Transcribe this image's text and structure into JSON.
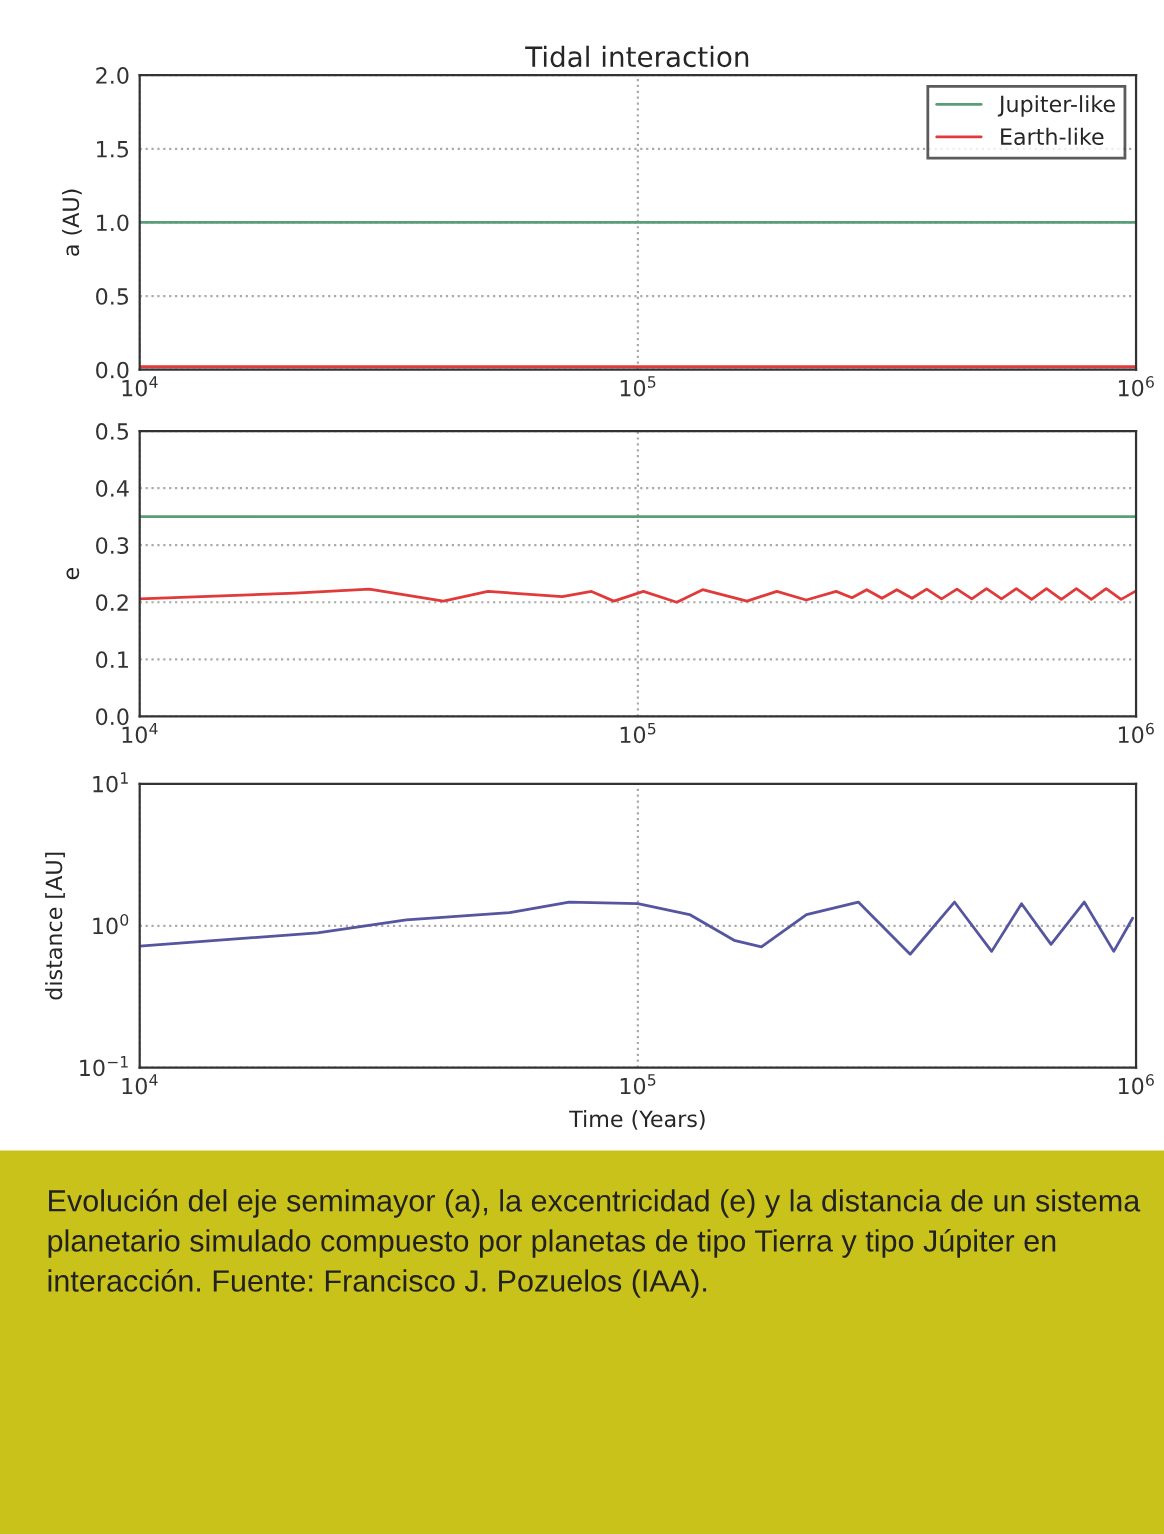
{
  "chart_data": [
    {
      "type": "line",
      "title": "Tidal interaction",
      "ylabel": "a (AU)",
      "xlim": [
        10000,
        1000000
      ],
      "xticks": [
        {
          "value": 10000,
          "label": "10$^{4}$"
        },
        {
          "value": 100000,
          "label": "10$^{5}$"
        },
        {
          "value": 1000000,
          "label": "10$^{6}$"
        }
      ],
      "ylim": [
        0,
        2
      ],
      "yticks": [
        {
          "value": 0,
          "label": "0.0"
        },
        {
          "value": 0.5,
          "label": "0.5"
        },
        {
          "value": 1,
          "label": "1.0"
        },
        {
          "value": 1.5,
          "label": "1.5"
        },
        {
          "value": 2,
          "label": "2.0"
        }
      ],
      "log": "x",
      "grid": true,
      "legend": "top right",
      "series": [
        {
          "name": "Jupiter-like",
          "color": "#5a9e78",
          "x": [
            10000,
            1000000
          ],
          "values": [
            1.0,
            1.0
          ]
        },
        {
          "name": "Earth-like",
          "color": "#e03a3a",
          "x": [
            10000,
            1000000
          ],
          "values": [
            0.02,
            0.02
          ]
        }
      ]
    },
    {
      "type": "line",
      "ylabel": "e",
      "xlim": [
        10000,
        1000000
      ],
      "xticks": [
        {
          "value": 10000,
          "label": "10$^{4}$"
        },
        {
          "value": 100000,
          "label": "10$^{5}$"
        },
        {
          "value": 1000000,
          "label": "10$^{6}$"
        }
      ],
      "ylim": [
        0,
        0.5
      ],
      "yticks": [
        {
          "value": 0,
          "label": "0.0"
        },
        {
          "value": 0.1,
          "label": "0.1"
        },
        {
          "value": 0.2,
          "label": "0.2"
        },
        {
          "value": 0.3,
          "label": "0.3"
        },
        {
          "value": 0.4,
          "label": "0.4"
        },
        {
          "value": 0.5,
          "label": "0.5"
        }
      ],
      "log": "x",
      "grid": true,
      "series": [
        {
          "color": "#5a9e78",
          "x": [
            10000,
            1000000
          ],
          "values": [
            0.35,
            0.35
          ]
        },
        {
          "color": "#e03a3a",
          "x": [
            10000,
            20500,
            28900,
            40700,
            50000,
            70500,
            80700,
            89500,
            102600,
            119700,
            134900,
            165600,
            190100,
            217800,
            250000,
            269000,
            288000,
            309000,
            331000,
            355000,
            380000,
            407000,
            437000,
            468000,
            501000,
            537000,
            575000,
            617000,
            661000,
            708000,
            759000,
            813000,
            871000,
            933000,
            1000000
          ],
          "values": [
            0.206,
            0.216,
            0.223,
            0.202,
            0.219,
            0.21,
            0.219,
            0.202,
            0.219,
            0.2,
            0.222,
            0.202,
            0.219,
            0.204,
            0.219,
            0.208,
            0.222,
            0.207,
            0.222,
            0.207,
            0.223,
            0.206,
            0.223,
            0.206,
            0.224,
            0.206,
            0.224,
            0.205,
            0.224,
            0.205,
            0.224,
            0.205,
            0.224,
            0.205,
            0.22
          ]
        }
      ]
    },
    {
      "type": "line",
      "ylabel": "distance [AU]",
      "xlabel": "Time (Years)",
      "xlim": [
        10000,
        1000000
      ],
      "xticks": [
        {
          "value": 10000,
          "label": "10$^{4}$"
        },
        {
          "value": 100000,
          "label": "10$^{5}$"
        },
        {
          "value": 1000000,
          "label": "10$^{6}$"
        }
      ],
      "ylim": [
        0.1,
        10
      ],
      "yticks": [
        {
          "value": 0.1,
          "label": "10$^{−1}$"
        },
        {
          "value": 1,
          "label": "10$^{0}$"
        },
        {
          "value": 10,
          "label": "10$^{1}$"
        }
      ],
      "log": "xy",
      "grid": true,
      "annotations": [
        "Evolución del eje semimayor (a), la excentricidad (e) y la distancia de un sistema planetario simulado compuesto por planetas de tipo Tierra y tipo Júpiter en interacción. Fuente: Francisco J. Pozuelos (IAA)."
      ],
      "series": [
        {
          "color": "#5555a0",
          "x": [
            10000,
            22750,
            34300,
            55300,
            72800,
            100000,
            127000,
            156000,
            177000,
            218000,
            277000,
            352000,
            432000,
            513000,
            589000,
            675000,
            787000,
            902000,
            984000
          ],
          "values": [
            0.72,
            0.89,
            1.1,
            1.24,
            1.47,
            1.43,
            1.2,
            0.79,
            0.71,
            1.2,
            1.47,
            0.63,
            1.47,
            0.66,
            1.43,
            0.74,
            1.47,
            0.66,
            1.13
          ]
        }
      ]
    }
  ]
}
